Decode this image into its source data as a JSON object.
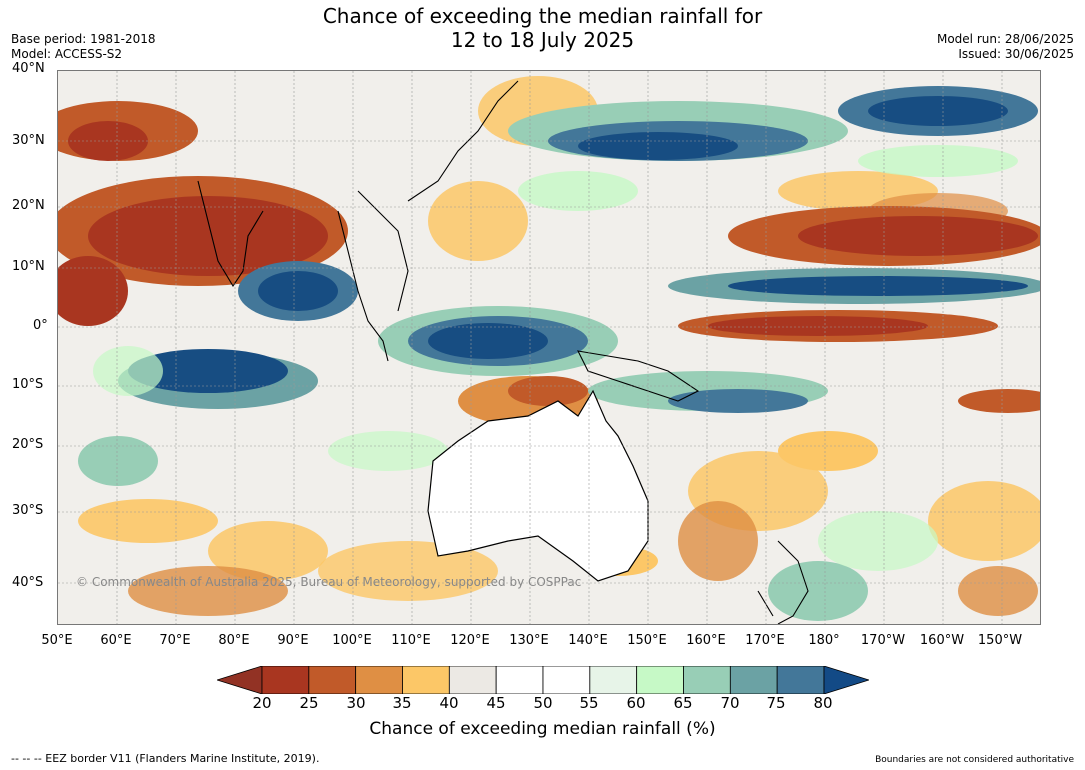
{
  "title": {
    "line1": "Chance of exceeding the median rainfall for",
    "line2": "12 to 18 July 2025"
  },
  "meta": {
    "base_period": "Base period: 1981-2018",
    "model": "Model: ACCESS-S2",
    "model_run": "Model run: 28/06/2025",
    "issued": "Issued: 30/06/2025"
  },
  "map": {
    "lat_labels": [
      "40°N",
      "30°N",
      "20°N",
      "10°N",
      "0°",
      "10°S",
      "20°S",
      "30°S",
      "40°S"
    ],
    "lon_labels": [
      "50°E",
      "60°E",
      "70°E",
      "80°E",
      "90°E",
      "100°E",
      "110°E",
      "120°E",
      "130°E",
      "140°E",
      "150°E",
      "160°E",
      "170°E",
      "180°",
      "170°W",
      "160°W",
      "150°W"
    ],
    "copyright": "© Commonwealth of Australia 2025, Bureau of Meteorology, supported by COSPPac"
  },
  "colorbar": {
    "label": "Chance of exceeding median rainfall (%)",
    "ticks": [
      "20",
      "25",
      "30",
      "35",
      "40",
      "45",
      "50",
      "55",
      "60",
      "65",
      "70",
      "75",
      "80"
    ],
    "colors": [
      "#a93620",
      "#c15a29",
      "#df8f44",
      "#fcc767",
      "#ece9e4",
      "#ffffff",
      "#ffffff",
      "#e7f4e8",
      "#c6f9c6",
      "#98ceb6",
      "#6ba2a4",
      "#437799",
      "#174d82"
    ],
    "under_color": "#923224",
    "over_color": "#134a86"
  },
  "footer": {
    "eez_note": "--  --  -- EEZ border V11 (Flanders Marine Institute, 2019).",
    "disclaimer": "Boundaries are not considered authoritative"
  }
}
